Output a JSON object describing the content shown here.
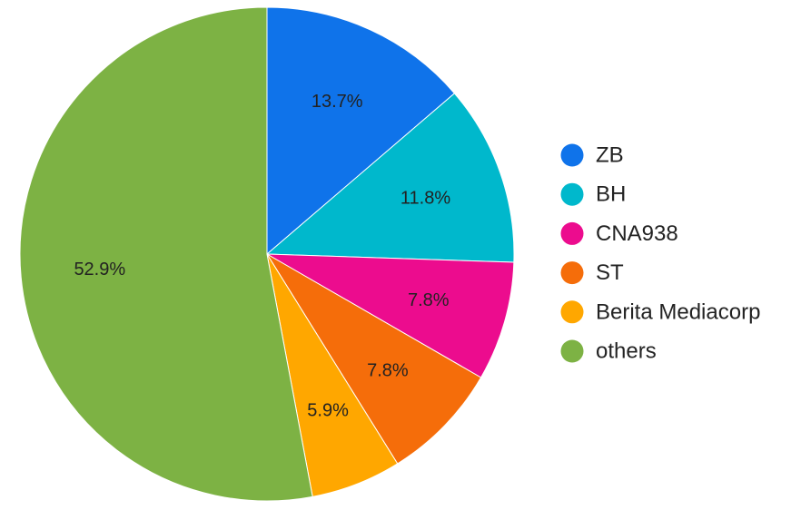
{
  "chart_data": {
    "type": "pie",
    "title": "",
    "legend_position": "right",
    "start_angle_deg": 0,
    "direction": "clockwise",
    "slices": [
      {
        "label": "ZB",
        "value": 13.7,
        "display": "13.7%",
        "color": "#0f73ea"
      },
      {
        "label": "BH",
        "value": 11.8,
        "display": "11.8%",
        "color": "#00b8cc"
      },
      {
        "label": "CNA938",
        "value": 7.8,
        "display": "7.8%",
        "color": "#ec0c8e"
      },
      {
        "label": "ST",
        "value": 7.8,
        "display": "7.8%",
        "color": "#f56d0a"
      },
      {
        "label": "Berita Mediacorp",
        "value": 5.9,
        "display": "5.9%",
        "color": "#ffa700"
      },
      {
        "label": "others",
        "value": 52.9,
        "display": "52.9%",
        "color": "#7db244"
      }
    ]
  }
}
